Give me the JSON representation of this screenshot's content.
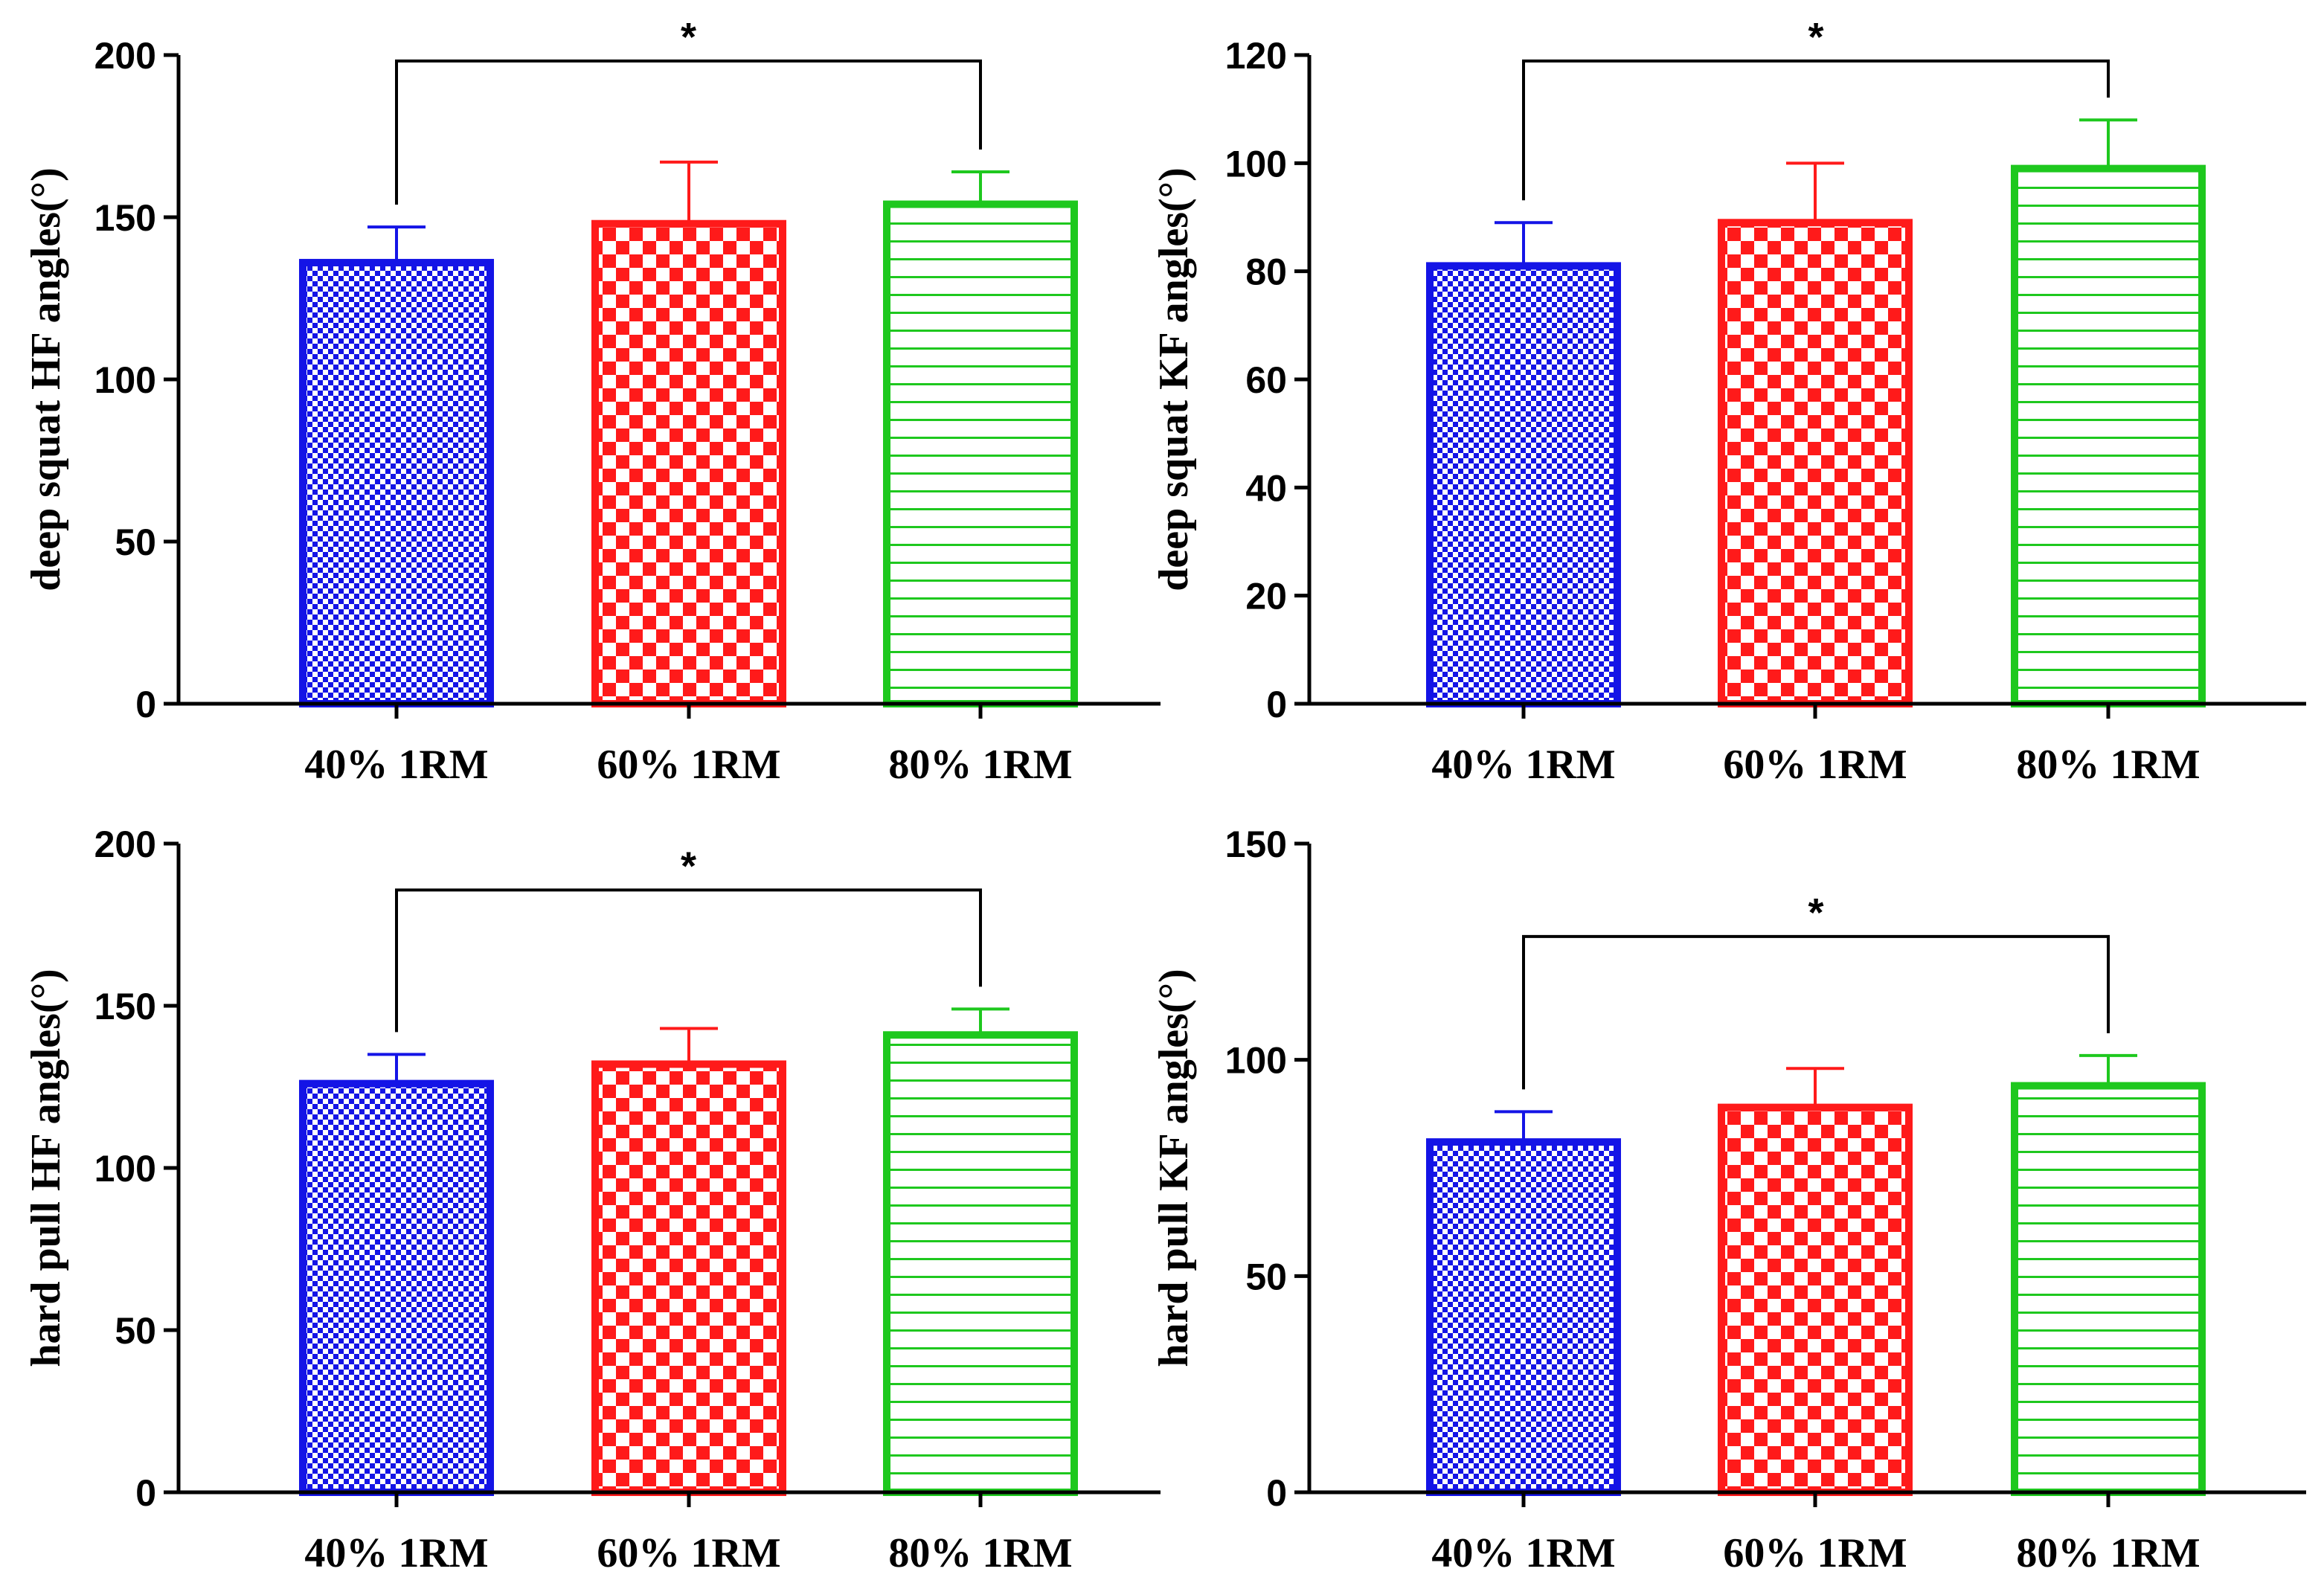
{
  "colors": {
    "blue": "#1414e6",
    "red": "#ff1a1a",
    "green": "#1ec81e",
    "axis": "#000000"
  },
  "chart_data": [
    {
      "type": "bar",
      "ylabel": "deep squat HF angles(°)",
      "categories": [
        "40% 1RM",
        "60% 1RM",
        "80% 1RM"
      ],
      "values": [
        136,
        148,
        154
      ],
      "errors": [
        11,
        19,
        10
      ],
      "ylim": [
        0,
        200
      ],
      "yticks": [
        "0",
        "50",
        "100",
        "150",
        "200"
      ],
      "significance": {
        "from": 0,
        "to": 2,
        "label": "*"
      }
    },
    {
      "type": "bar",
      "ylabel": "deep squat KF angles(°)",
      "categories": [
        "40% 1RM",
        "60% 1RM",
        "80% 1RM"
      ],
      "values": [
        81,
        89,
        99
      ],
      "errors": [
        8,
        11,
        9
      ],
      "ylim": [
        0,
        120
      ],
      "yticks": [
        "0",
        "20",
        "40",
        "60",
        "80",
        "100",
        "120"
      ],
      "significance": {
        "from": 0,
        "to": 2,
        "label": "*"
      }
    },
    {
      "type": "bar",
      "ylabel": "hard pull HF angles(°)",
      "categories": [
        "40% 1RM",
        "60% 1RM",
        "80% 1RM"
      ],
      "values": [
        126,
        132,
        141
      ],
      "errors": [
        9,
        11,
        8
      ],
      "ylim": [
        0,
        200
      ],
      "yticks": [
        "0",
        "50",
        "100",
        "150",
        "200"
      ],
      "significance": {
        "from": 0,
        "to": 2,
        "label": "*"
      }
    },
    {
      "type": "bar",
      "ylabel": "hard pull KF angles(°)",
      "categories": [
        "40% 1RM",
        "60% 1RM",
        "80% 1RM"
      ],
      "values": [
        81,
        89,
        94
      ],
      "errors": [
        7,
        9,
        7
      ],
      "ylim": [
        0,
        150
      ],
      "yticks": [
        "0",
        "50",
        "100",
        "150"
      ],
      "significance": {
        "from": 0,
        "to": 2,
        "label": "*"
      }
    }
  ]
}
